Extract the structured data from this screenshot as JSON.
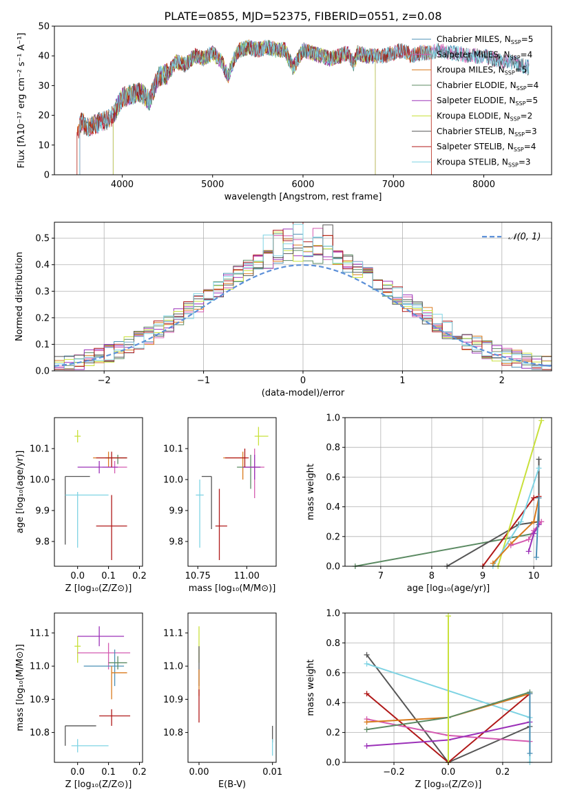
{
  "colors": {
    "chabrier_miles": "#4a8fb5",
    "salpeter_miles": "#d45ab0",
    "kroupa_miles": "#d97a1c",
    "chabrier_elodie": "#5b8a62",
    "salpeter_elodie": "#9b30b8",
    "kroupa_elodie": "#c8e03a",
    "chabrier_stelib": "#555555",
    "salpeter_stelib": "#b01818",
    "kroupa_stelib": "#7ed3e3",
    "normal": "#5b8fd8",
    "grid": "#b0b0b0"
  },
  "chart_data": [
    {
      "type": "line",
      "title": "PLATE=0855, MJD=52375, FIBERID=0551, z=0.08",
      "xlabel": "wavelength [Angstrom, rest frame]",
      "ylabel": "Flux [fλ10⁻¹⁷ erg cm⁻² s⁻¹ A⁻¹]",
      "xlim": [
        3250,
        8750
      ],
      "ylim": [
        0,
        50
      ],
      "xticks": [
        4000,
        5000,
        6000,
        7000,
        8000
      ],
      "yticks": [
        0,
        10,
        20,
        30,
        40,
        50
      ],
      "grid": false,
      "legend_position": "top-right",
      "spectrum_x": [
        3500,
        3550,
        3600,
        3700,
        3800,
        3900,
        4000,
        4100,
        4200,
        4300,
        4400,
        4500,
        4600,
        4700,
        4800,
        4900,
        5000,
        5100,
        5170,
        5250,
        5300,
        5400,
        5500,
        5600,
        5700,
        5800,
        5890,
        6000,
        6100,
        6200,
        6300,
        6400,
        6500,
        6563,
        6600,
        6700,
        6800,
        6900,
        7000,
        7100,
        7200,
        7300,
        7400,
        7500,
        7600,
        7700,
        7800,
        7900,
        8000,
        8100,
        8200,
        8300,
        8400,
        8500
      ],
      "spectrum_y": [
        14,
        18,
        16,
        17,
        18,
        20,
        26,
        27,
        28,
        25,
        33,
        34,
        38,
        37,
        40,
        39,
        41,
        38,
        33,
        40,
        42,
        43,
        42,
        43,
        42,
        42,
        36,
        42,
        41,
        40,
        39,
        40,
        41,
        37,
        41,
        40,
        40,
        40,
        41,
        42,
        40,
        41,
        41,
        42,
        41,
        41,
        40,
        40,
        40,
        39,
        38,
        38,
        37,
        36
      ],
      "series": [
        {
          "name": "Chabrier MILES, N_SSP=5",
          "label": "Chabrier MILES, N",
          "sub": "SSP",
          "suffix": "=5",
          "color_key": "chabrier_miles",
          "start": 3530,
          "end": 8500
        },
        {
          "name": "Salpeter MILES, N_SSP=4",
          "label": "Salpeter MILES, N",
          "sub": "SSP",
          "suffix": "=4",
          "color_key": "salpeter_miles",
          "start": 3530,
          "end": 8500
        },
        {
          "name": "Kroupa MILES, N_SSP=5",
          "label": "Kroupa MILES, N",
          "sub": "SSP",
          "suffix": "=5",
          "color_key": "kroupa_miles",
          "start": 3500,
          "end": 7420
        },
        {
          "name": "Chabrier ELODIE, N_SSP=4",
          "label": "Chabrier ELODIE, N",
          "sub": "SSP",
          "suffix": "=4",
          "color_key": "chabrier_elodie",
          "start": 3900,
          "end": 6800
        },
        {
          "name": "Salpeter ELODIE, N_SSP=5",
          "label": "Salpeter ELODIE, N",
          "sub": "SSP",
          "suffix": "=5",
          "color_key": "salpeter_elodie",
          "start": 3900,
          "end": 6800
        },
        {
          "name": "Kroupa ELODIE, N_SSP=2",
          "label": "Kroupa ELODIE, N",
          "sub": "SSP",
          "suffix": "=2",
          "color_key": "kroupa_elodie",
          "start": 3900,
          "end": 6800
        },
        {
          "name": "Chabrier STELIB, N_SSP=3",
          "label": "Chabrier STELIB, N",
          "sub": "SSP",
          "suffix": "=3",
          "color_key": "chabrier_stelib",
          "start": 3530,
          "end": 8500
        },
        {
          "name": "Salpeter STELIB, N_SSP=4",
          "label": "Salpeter STELIB, N",
          "sub": "SSP",
          "suffix": "=4",
          "color_key": "salpeter_stelib",
          "start": 3500,
          "end": 7420
        },
        {
          "name": "Kroupa STELIB, N_SSP=3",
          "label": "Kroupa STELIB, N",
          "sub": "SSP",
          "suffix": "=3",
          "color_key": "kroupa_stelib",
          "start": 3530,
          "end": 8500
        }
      ]
    },
    {
      "type": "line",
      "xlabel": "(data-model)/error",
      "ylabel": "Normed distribution",
      "xlim": [
        -2.5,
        2.5
      ],
      "ylim": [
        0,
        0.56
      ],
      "xticks": [
        -2,
        -1,
        0,
        1,
        2
      ],
      "yticks": [
        0.0,
        0.1,
        0.2,
        0.3,
        0.4,
        0.5
      ],
      "grid": true,
      "legend_position": "top-right",
      "legend_label": "𝒩(0, 1)",
      "bin_width": 0.1,
      "histogram_color_keys": [
        "chabrier_miles",
        "salpeter_miles",
        "kroupa_miles",
        "chabrier_elodie",
        "salpeter_elodie",
        "kroupa_elodie",
        "chabrier_stelib",
        "salpeter_stelib",
        "kroupa_stelib"
      ]
    },
    {
      "type": "scatter",
      "xlabel": "Z [log₁₀(Z/Z⊙)]",
      "ylabel": "age  [log₁₀(age/yr)]",
      "xlim": [
        -0.075,
        0.21
      ],
      "ylim": [
        9.72,
        10.2
      ],
      "xticks": [
        0.0,
        0.1,
        0.2
      ],
      "yticks": [
        9.8,
        9.9,
        10.0,
        10.1
      ],
      "points": [
        {
          "x": 0.0,
          "y": 10.14,
          "xerr": [
            0.01,
            0.01
          ],
          "yerr": [
            0.02,
            0.02
          ],
          "color_key": "kroupa_elodie"
        },
        {
          "x": 0.1,
          "y": 10.07,
          "xerr": [
            0.05,
            0.06
          ],
          "yerr": [
            0.03,
            0.02
          ],
          "color_key": "kroupa_miles"
        },
        {
          "x": 0.13,
          "y": 10.07,
          "xerr": [
            0.04,
            0.03
          ],
          "yerr": [
            0.02,
            0.01
          ],
          "color_key": "chabrier_elodie"
        },
        {
          "x": 0.12,
          "y": 10.04,
          "xerr": [
            0.04,
            0.04
          ],
          "yerr": [
            0.02,
            0.02
          ],
          "color_key": "salpeter_miles"
        },
        {
          "x": 0.07,
          "y": 10.04,
          "xerr": [
            0.07,
            0.06
          ],
          "yerr": [
            0.02,
            0.02
          ],
          "color_key": "salpeter_elodie"
        },
        {
          "x": 0.11,
          "y": 10.07,
          "xerr": [
            0.05,
            0.05
          ],
          "yerr": [
            0.03,
            0.02
          ],
          "color_key": "salpeter_stelib"
        },
        {
          "x": -0.04,
          "y": 10.01,
          "xerr": [
            0.0,
            0.08
          ],
          "yerr": [
            0.22,
            0.0
          ],
          "color_key": "chabrier_stelib"
        },
        {
          "x": 0.0,
          "y": 9.95,
          "xerr": [
            0.04,
            0.1
          ],
          "yerr": [
            0.17,
            0.01
          ],
          "color_key": "kroupa_stelib"
        },
        {
          "x": 0.11,
          "y": 9.85,
          "xerr": [
            0.05,
            0.05
          ],
          "yerr": [
            0.11,
            0.1
          ],
          "color_key": "salpeter_stelib"
        }
      ]
    },
    {
      "type": "scatter",
      "xlabel": "mass [log₁₀(M/M⊙)]",
      "ylabel": "",
      "xlim": [
        10.7,
        11.15
      ],
      "ylim": [
        9.72,
        10.2
      ],
      "xticks": [
        10.75,
        11.0
      ],
      "yticks": [
        9.8,
        9.9,
        10.0,
        10.1
      ],
      "points": [
        {
          "x": 11.06,
          "y": 10.14,
          "xerr": [
            0.02,
            0.05
          ],
          "yerr": [
            0.03,
            0.03
          ],
          "color_key": "kroupa_elodie"
        },
        {
          "x": 10.98,
          "y": 10.07,
          "xerr": [
            0.1,
            0.02
          ],
          "yerr": [
            0.07,
            0.02
          ],
          "color_key": "kroupa_miles"
        },
        {
          "x": 11.02,
          "y": 10.04,
          "xerr": [
            0.07,
            0.05
          ],
          "yerr": [
            0.07,
            0.04
          ],
          "color_key": "chabrier_elodie"
        },
        {
          "x": 11.04,
          "y": 10.04,
          "xerr": [
            0.06,
            0.05
          ],
          "yerr": [
            0.1,
            0.06
          ],
          "color_key": "salpeter_miles"
        },
        {
          "x": 11.04,
          "y": 10.04,
          "xerr": [
            0.06,
            0.03
          ],
          "yerr": [
            0.04,
            0.04
          ],
          "color_key": "salpeter_elodie"
        },
        {
          "x": 10.99,
          "y": 10.07,
          "xerr": [
            0.1,
            0.02
          ],
          "yerr": [
            0.03,
            0.03
          ],
          "color_key": "salpeter_stelib"
        },
        {
          "x": 10.82,
          "y": 10.01,
          "xerr": [
            0.05,
            0.0
          ],
          "yerr": [
            0.17,
            0.0
          ],
          "color_key": "chabrier_stelib"
        },
        {
          "x": 10.76,
          "y": 9.95,
          "xerr": [
            0.02,
            0.02
          ],
          "yerr": [
            0.17,
            0.05
          ],
          "color_key": "kroupa_stelib"
        },
        {
          "x": 10.86,
          "y": 9.85,
          "xerr": [
            0.02,
            0.04
          ],
          "yerr": [
            0.11,
            0.12
          ],
          "color_key": "salpeter_stelib"
        }
      ]
    },
    {
      "type": "line",
      "xlabel": "age  [log₁₀(age/yr)]",
      "ylabel": "mass weight",
      "xlim": [
        6.3,
        10.35
      ],
      "ylim": [
        0,
        1.0
      ],
      "xticks": [
        7,
        8,
        9,
        10
      ],
      "yticks": [
        0.0,
        0.2,
        0.4,
        0.6,
        0.8,
        1.0
      ],
      "grid": true,
      "series": [
        {
          "color_key": "chabrier_elodie",
          "x": [
            6.5,
            10.0
          ],
          "y": [
            0.0,
            0.22
          ]
        },
        {
          "color_key": "chabrier_stelib",
          "x": [
            8.3,
            9.7,
            10.1,
            10.1
          ],
          "y": [
            0.0,
            0.28,
            0.3,
            0.72
          ]
        },
        {
          "color_key": "salpeter_stelib",
          "x": [
            9.0,
            10.0,
            10.1
          ],
          "y": [
            0.0,
            0.46,
            0.47
          ]
        },
        {
          "color_key": "kroupa_elodie",
          "x": [
            9.3,
            10.15
          ],
          "y": [
            0.0,
            0.98
          ]
        },
        {
          "color_key": "kroupa_stelib",
          "x": [
            9.2,
            9.75,
            10.1
          ],
          "y": [
            0.0,
            0.3,
            0.66
          ]
        },
        {
          "color_key": "kroupa_miles",
          "x": [
            9.2,
            9.55,
            10.0,
            10.1
          ],
          "y": [
            0.02,
            0.15,
            0.3,
            0.46
          ]
        },
        {
          "color_key": "salpeter_miles",
          "x": [
            9.55,
            9.9,
            10.0,
            10.15
          ],
          "y": [
            0.14,
            0.18,
            0.24,
            0.3
          ]
        },
        {
          "color_key": "salpeter_elodie",
          "x": [
            9.9,
            10.0,
            10.1
          ],
          "y": [
            0.1,
            0.22,
            0.28
          ]
        },
        {
          "color_key": "chabrier_miles",
          "x": [
            10.05,
            10.1
          ],
          "y": [
            0.06,
            0.46
          ]
        }
      ]
    },
    {
      "type": "scatter",
      "xlabel": "Z [log₁₀(Z/Z⊙)]",
      "ylabel": "mass [log₁₀(M/M⊙)]",
      "xlim": [
        -0.075,
        0.21
      ],
      "ylim": [
        10.71,
        11.16
      ],
      "xticks": [
        0.0,
        0.1,
        0.2
      ],
      "yticks": [
        10.8,
        10.9,
        11.0,
        11.1
      ],
      "points": [
        {
          "x": 0.0,
          "y": 11.06,
          "xerr": [
            0.01,
            0.01
          ],
          "yerr": [
            0.05,
            0.03
          ],
          "color_key": "kroupa_elodie"
        },
        {
          "x": 0.07,
          "y": 11.09,
          "xerr": [
            0.07,
            0.08
          ],
          "yerr": [
            0.03,
            0.03
          ],
          "color_key": "salpeter_elodie"
        },
        {
          "x": 0.1,
          "y": 11.04,
          "xerr": [
            0.1,
            0.07
          ],
          "yerr": [
            0.05,
            0.03
          ],
          "color_key": "salpeter_miles"
        },
        {
          "x": 0.12,
          "y": 11.0,
          "xerr": [
            0.1,
            0.03
          ],
          "yerr": [
            0.06,
            0.05
          ],
          "color_key": "chabrier_miles"
        },
        {
          "x": 0.11,
          "y": 10.98,
          "xerr": [
            0.0,
            0.05
          ],
          "yerr": [
            0.08,
            0.02
          ],
          "color_key": "kroupa_miles"
        },
        {
          "x": 0.13,
          "y": 11.01,
          "xerr": [
            0.03,
            0.03
          ],
          "yerr": [
            0.02,
            0.02
          ],
          "color_key": "chabrier_elodie"
        },
        {
          "x": 0.11,
          "y": 10.85,
          "xerr": [
            0.04,
            0.06
          ],
          "yerr": [
            0.03,
            0.02
          ],
          "color_key": "salpeter_stelib"
        },
        {
          "x": -0.04,
          "y": 10.82,
          "xerr": [
            0.0,
            0.1
          ],
          "yerr": [
            0.06,
            0.0
          ],
          "color_key": "chabrier_stelib"
        },
        {
          "x": 0.0,
          "y": 10.76,
          "xerr": [
            0.02,
            0.1
          ],
          "yerr": [
            0.02,
            0.02
          ],
          "color_key": "kroupa_stelib"
        }
      ]
    },
    {
      "type": "scatter",
      "xlabel": "E(B-V)",
      "ylabel": "",
      "xlim": [
        -0.0015,
        0.0105
      ],
      "ylim": [
        10.71,
        11.16
      ],
      "xticks": [
        0.0,
        0.01
      ],
      "yticks": [
        10.8,
        10.9,
        11.0,
        11.1
      ],
      "points": [
        {
          "x": 0.0,
          "y": 11.06,
          "yerr": [
            0.05,
            0.06
          ],
          "color_key": "kroupa_elodie"
        },
        {
          "x": 0.0,
          "y": 11.01,
          "yerr": [
            0.07,
            0.05
          ],
          "color_key": "chabrier_stelib"
        },
        {
          "x": 0.0,
          "y": 10.95,
          "yerr": [
            0.04,
            0.04
          ],
          "color_key": "kroupa_miles"
        },
        {
          "x": 0.0,
          "y": 10.88,
          "yerr": [
            0.05,
            0.05
          ],
          "color_key": "salpeter_stelib"
        },
        {
          "x": 0.01,
          "y": 10.79,
          "yerr": [
            0.02,
            0.03
          ],
          "color_key": "chabrier_stelib"
        },
        {
          "x": 0.01,
          "y": 10.76,
          "yerr": [
            0.03,
            0.02
          ],
          "color_key": "kroupa_stelib"
        }
      ]
    },
    {
      "type": "line",
      "xlabel": "Z [log₁₀(Z/Z⊙)]",
      "ylabel": "mass weight",
      "xlim": [
        -0.38,
        0.38
      ],
      "ylim": [
        0,
        1.0
      ],
      "xticks": [
        -0.2,
        0.0,
        0.2
      ],
      "yticks": [
        0.0,
        0.2,
        0.4,
        0.6,
        0.8,
        1.0
      ],
      "grid": true,
      "series": [
        {
          "color_key": "chabrier_stelib",
          "x": [
            -0.3,
            0.0,
            0.3
          ],
          "y": [
            0.72,
            0.0,
            0.24
          ]
        },
        {
          "color_key": "kroupa_stelib",
          "x": [
            -0.3,
            0.3,
            0.3
          ],
          "y": [
            0.66,
            0.3,
            0.0
          ]
        },
        {
          "color_key": "salpeter_stelib",
          "x": [
            -0.3,
            0.0,
            0.3
          ],
          "y": [
            0.46,
            0.0,
            0.46
          ]
        },
        {
          "color_key": "salpeter_miles",
          "x": [
            -0.3,
            0.0,
            0.3
          ],
          "y": [
            0.29,
            0.18,
            0.14
          ]
        },
        {
          "color_key": "kroupa_miles",
          "x": [
            -0.3,
            0.0,
            0.3
          ],
          "y": [
            0.27,
            0.3,
            0.46
          ]
        },
        {
          "color_key": "chabrier_elodie",
          "x": [
            -0.3,
            0.0,
            0.3
          ],
          "y": [
            0.22,
            0.3,
            0.47
          ]
        },
        {
          "color_key": "salpeter_elodie",
          "x": [
            -0.3,
            0.0,
            0.3
          ],
          "y": [
            0.11,
            0.15,
            0.27
          ]
        },
        {
          "color_key": "kroupa_elodie",
          "x": [
            0.0,
            0.0
          ],
          "y": [
            0.0,
            0.98
          ]
        },
        {
          "color_key": "chabrier_miles",
          "x": [
            0.3,
            0.3
          ],
          "y": [
            0.06,
            0.46
          ]
        }
      ]
    }
  ]
}
